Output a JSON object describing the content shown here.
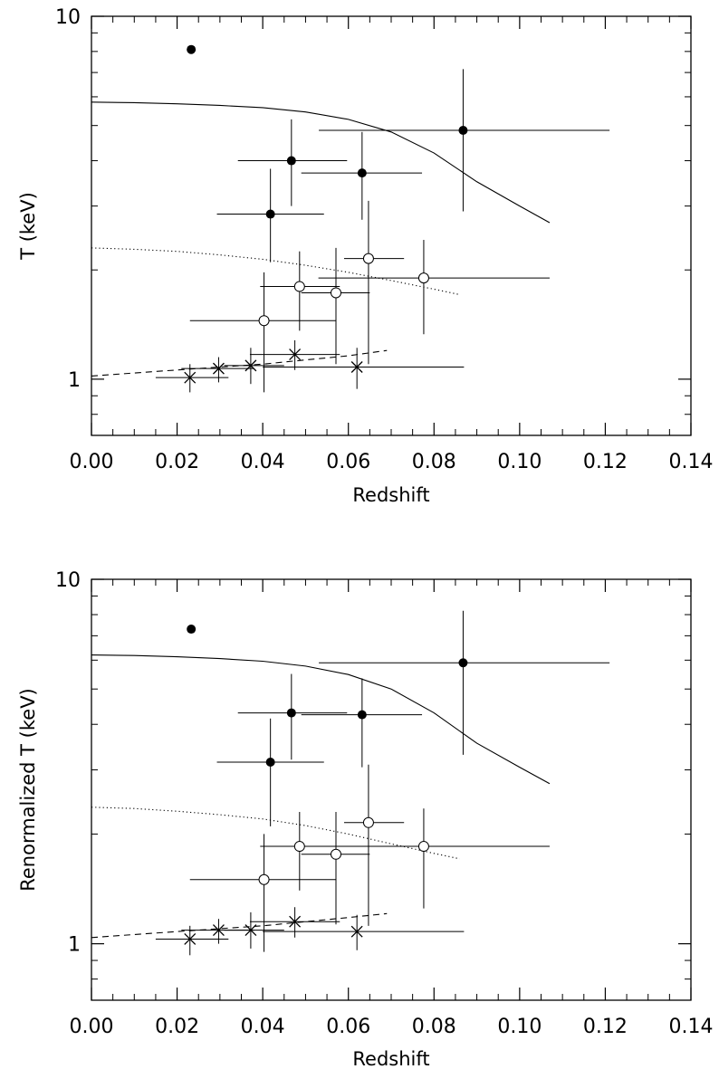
{
  "chart_data": [
    {
      "type": "scatter",
      "xlabel": "Redshift",
      "ylabel": "T (keV)",
      "xlim": [
        0.0,
        0.14
      ],
      "ylim": [
        0.7,
        10
      ],
      "yscale": "log",
      "grid": false,
      "xticks": [
        0.0,
        0.02,
        0.04,
        0.06,
        0.08,
        0.1,
        0.12,
        0.14
      ],
      "xtick_labels": [
        "0.00",
        "0.02",
        "0.04",
        "0.06",
        "0.08",
        "0.10",
        "0.12",
        "0.14"
      ],
      "yticks": [
        1,
        10
      ],
      "ytick_labels": [
        "1",
        "10"
      ],
      "series": [
        {
          "marker": "filled-circle",
          "points": [
            {
              "x": 0.0233,
              "y": 8.1
            },
            {
              "x": 0.0418,
              "y": 2.85,
              "xerr": [
                0.0125,
                0.0125
              ],
              "yerr": [
                0.75,
                0.95
              ]
            },
            {
              "x": 0.0467,
              "y": 4.0,
              "xerr": [
                0.0125,
                0.013
              ],
              "yerr": [
                1.0,
                1.2
              ]
            },
            {
              "x": 0.0632,
              "y": 3.7,
              "xerr": [
                0.0142,
                0.014
              ],
              "yerr": [
                0.95,
                1.1
              ]
            },
            {
              "x": 0.0868,
              "y": 4.85,
              "xerr": [
                0.0337,
                0.0342
              ],
              "yerr": [
                1.95,
                2.3
              ]
            }
          ]
        },
        {
          "marker": "open-circle",
          "points": [
            {
              "x": 0.0403,
              "y": 1.45,
              "xerr": [
                0.0173,
                0.0167
              ],
              "yerr": [
                0.53,
                0.52
              ]
            },
            {
              "x": 0.0486,
              "y": 1.8,
              "xerr": [
                0.0092,
                0.0094
              ],
              "yerr": [
                0.44,
                0.45
              ]
            },
            {
              "x": 0.0571,
              "y": 1.73,
              "xerr": [
                0.0081,
                0.0079
              ],
              "yerr": [
                0.63,
                0.57
              ]
            },
            {
              "x": 0.0647,
              "y": 2.15,
              "xerr": [
                0.0057,
                0.0083
              ],
              "yerr": [
                1.05,
                0.95
              ]
            },
            {
              "x": 0.0776,
              "y": 1.9,
              "xerr": [
                0.0246,
                0.0294
              ],
              "yerr": [
                0.57,
                0.52
              ]
            }
          ]
        },
        {
          "marker": "cross",
          "points": [
            {
              "x": 0.023,
              "y": 1.01,
              "xerr": [
                0.008,
                0.009
              ],
              "yerr": [
                0.09,
                0.09
              ]
            },
            {
              "x": 0.0297,
              "y": 1.07,
              "xerr": [
                0.0087,
                0.0083
              ],
              "yerr": [
                0.09,
                0.08
              ]
            },
            {
              "x": 0.0372,
              "y": 1.09,
              "xerr": [
                0.0062,
                0.0078
              ],
              "yerr": [
                0.12,
                0.13
              ]
            },
            {
              "x": 0.0475,
              "y": 1.17,
              "xerr": [
                0.0105,
                0.0105
              ],
              "yerr": [
                0.11,
                0.11
              ]
            },
            {
              "x": 0.062,
              "y": 1.08,
              "xerr": [
                0.022,
                0.025
              ],
              "yerr": [
                0.14,
                0.14
              ]
            }
          ]
        }
      ],
      "curves": [
        {
          "style": "solid",
          "x": [
            0.0,
            0.01,
            0.02,
            0.03,
            0.04,
            0.05,
            0.06,
            0.07,
            0.08,
            0.09,
            0.1,
            0.107
          ],
          "y": [
            5.8,
            5.78,
            5.74,
            5.68,
            5.6,
            5.45,
            5.2,
            4.8,
            4.2,
            3.5,
            3.0,
            2.7
          ]
        },
        {
          "style": "dotted",
          "x": [
            0.0,
            0.01,
            0.02,
            0.03,
            0.04,
            0.05,
            0.06,
            0.07,
            0.08,
            0.086
          ],
          "y": [
            2.3,
            2.28,
            2.25,
            2.2,
            2.14,
            2.06,
            1.97,
            1.87,
            1.77,
            1.71
          ]
        },
        {
          "style": "dashed",
          "x": [
            0.0,
            0.01,
            0.02,
            0.03,
            0.04,
            0.05,
            0.06,
            0.069
          ],
          "y": [
            1.02,
            1.04,
            1.06,
            1.08,
            1.1,
            1.13,
            1.16,
            1.2
          ]
        }
      ]
    },
    {
      "type": "scatter",
      "xlabel": "Redshift",
      "ylabel": "Renormalized T (keV)",
      "xlim": [
        0.0,
        0.14
      ],
      "ylim": [
        0.7,
        10
      ],
      "yscale": "log",
      "grid": false,
      "xticks": [
        0.0,
        0.02,
        0.04,
        0.06,
        0.08,
        0.1,
        0.12,
        0.14
      ],
      "xtick_labels": [
        "0.00",
        "0.02",
        "0.04",
        "0.06",
        "0.08",
        "0.10",
        "0.12",
        "0.14"
      ],
      "yticks": [
        1,
        10
      ],
      "ytick_labels": [
        "1",
        "10"
      ],
      "series": [
        {
          "marker": "filled-circle",
          "points": [
            {
              "x": 0.0233,
              "y": 7.3
            },
            {
              "x": 0.0418,
              "y": 3.15,
              "xerr": [
                0.0125,
                0.0125
              ],
              "yerr": [
                1.05,
                1.0
              ]
            },
            {
              "x": 0.0467,
              "y": 4.3,
              "xerr": [
                0.0125,
                0.013
              ],
              "yerr": [
                1.1,
                1.2
              ]
            },
            {
              "x": 0.0632,
              "y": 4.25,
              "xerr": [
                0.0142,
                0.014
              ],
              "yerr": [
                1.2,
                1.1
              ]
            },
            {
              "x": 0.0868,
              "y": 5.9,
              "xerr": [
                0.0337,
                0.0342
              ],
              "yerr": [
                2.6,
                2.3
              ]
            }
          ]
        },
        {
          "marker": "open-circle",
          "points": [
            {
              "x": 0.0403,
              "y": 1.5,
              "xerr": [
                0.0173,
                0.0167
              ],
              "yerr": [
                0.55,
                0.5
              ]
            },
            {
              "x": 0.0486,
              "y": 1.85,
              "xerr": [
                0.0092,
                0.0094
              ],
              "yerr": [
                0.45,
                0.45
              ]
            },
            {
              "x": 0.0571,
              "y": 1.76,
              "xerr": [
                0.0081,
                0.0079
              ],
              "yerr": [
                0.63,
                0.54
              ]
            },
            {
              "x": 0.0647,
              "y": 2.15,
              "xerr": [
                0.0057,
                0.0083
              ],
              "yerr": [
                1.03,
                0.95
              ]
            },
            {
              "x": 0.0776,
              "y": 1.85,
              "xerr": [
                0.0246,
                0.0294
              ],
              "yerr": [
                0.6,
                0.5
              ]
            }
          ]
        },
        {
          "marker": "cross",
          "points": [
            {
              "x": 0.023,
              "y": 1.03,
              "xerr": [
                0.008,
                0.009
              ],
              "yerr": [
                0.1,
                0.09
              ]
            },
            {
              "x": 0.0297,
              "y": 1.09,
              "xerr": [
                0.0087,
                0.0083
              ],
              "yerr": [
                0.09,
                0.08
              ]
            },
            {
              "x": 0.0372,
              "y": 1.09,
              "xerr": [
                0.0062,
                0.0078
              ],
              "yerr": [
                0.12,
                0.13
              ]
            },
            {
              "x": 0.0475,
              "y": 1.15,
              "xerr": [
                0.0105,
                0.0105
              ],
              "yerr": [
                0.11,
                0.11
              ]
            },
            {
              "x": 0.062,
              "y": 1.08,
              "xerr": [
                0.022,
                0.025
              ],
              "yerr": [
                0.12,
                0.12
              ]
            }
          ]
        }
      ],
      "curves": [
        {
          "style": "solid",
          "x": [
            0.0,
            0.01,
            0.02,
            0.03,
            0.04,
            0.05,
            0.06,
            0.07,
            0.08,
            0.09,
            0.1,
            0.107
          ],
          "y": [
            6.2,
            6.18,
            6.13,
            6.06,
            5.96,
            5.78,
            5.48,
            5.0,
            4.3,
            3.55,
            3.05,
            2.75
          ]
        },
        {
          "style": "dotted",
          "x": [
            0.0,
            0.01,
            0.02,
            0.03,
            0.04,
            0.05,
            0.06,
            0.07,
            0.08,
            0.086
          ],
          "y": [
            2.37,
            2.35,
            2.31,
            2.26,
            2.2,
            2.11,
            2.0,
            1.88,
            1.77,
            1.71
          ]
        },
        {
          "style": "dashed",
          "x": [
            0.0,
            0.01,
            0.02,
            0.03,
            0.04,
            0.05,
            0.06,
            0.069
          ],
          "y": [
            1.04,
            1.06,
            1.08,
            1.1,
            1.12,
            1.15,
            1.18,
            1.21
          ]
        }
      ]
    }
  ]
}
